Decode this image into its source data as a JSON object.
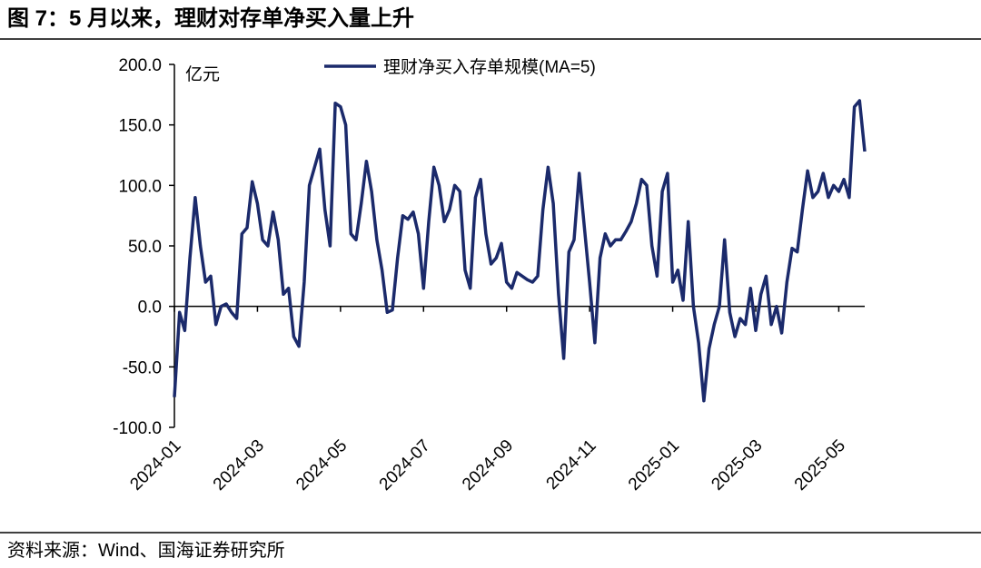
{
  "title": "图 7：5 月以来，理财对存单净买入量上升",
  "source": "资料来源：Wind、国海证券研究所",
  "chart_data": {
    "type": "line",
    "y_unit": "亿元",
    "categories": [
      "2024-01",
      null,
      null,
      null,
      null,
      null,
      null,
      null,
      null,
      null,
      null,
      null,
      null,
      null,
      null,
      null,
      "2024-03",
      null,
      null,
      null,
      null,
      null,
      null,
      null,
      null,
      null,
      null,
      null,
      null,
      null,
      null,
      null,
      "2024-05",
      null,
      null,
      null,
      null,
      null,
      null,
      null,
      null,
      null,
      null,
      null,
      null,
      null,
      null,
      null,
      "2024-07",
      null,
      null,
      null,
      null,
      null,
      null,
      null,
      null,
      null,
      null,
      null,
      null,
      null,
      null,
      null,
      "2024-09",
      null,
      null,
      null,
      null,
      null,
      null,
      null,
      null,
      null,
      null,
      null,
      null,
      null,
      null,
      null,
      "2024-11",
      null,
      null,
      null,
      null,
      null,
      null,
      null,
      null,
      null,
      null,
      null,
      null,
      null,
      null,
      null,
      "2025-01",
      null,
      null,
      null,
      null,
      null,
      null,
      null,
      null,
      null,
      null,
      null,
      null,
      null,
      null,
      null,
      "2025-03",
      null,
      null,
      null,
      null,
      null,
      null,
      null,
      null,
      null,
      null,
      null,
      null,
      null,
      null,
      null,
      "2025-05",
      null,
      null,
      null,
      null,
      null
    ],
    "series": [
      {
        "name": "理财净买入存单规模(MA=5)",
        "color": "#1b2a6b",
        "values": [
          -75,
          -5,
          -20,
          40,
          90,
          50,
          20,
          25,
          -15,
          0,
          2,
          -5,
          -10,
          60,
          65,
          103,
          85,
          55,
          50,
          78,
          55,
          10,
          15,
          -25,
          -33,
          20,
          100,
          115,
          130,
          80,
          50,
          168,
          165,
          150,
          60,
          55,
          85,
          120,
          95,
          55,
          30,
          -5,
          -3,
          40,
          75,
          72,
          78,
          60,
          15,
          70,
          115,
          100,
          70,
          80,
          100,
          95,
          30,
          15,
          90,
          105,
          60,
          35,
          40,
          52,
          20,
          15,
          28,
          25,
          22,
          20,
          25,
          80,
          115,
          85,
          10,
          -43,
          45,
          55,
          110,
          65,
          20,
          -30,
          40,
          60,
          50,
          55,
          55,
          62,
          70,
          85,
          105,
          100,
          50,
          25,
          95,
          110,
          20,
          30,
          5,
          70,
          0,
          -30,
          -78,
          -35,
          -15,
          0,
          55,
          -5,
          -25,
          -10,
          -15,
          15,
          -20,
          10,
          25,
          -15,
          0,
          -22,
          20,
          48,
          45,
          80,
          112,
          90,
          95,
          110,
          90,
          100,
          95,
          105,
          90,
          165,
          170,
          128
        ]
      }
    ],
    "ylim": [
      -100,
      200
    ],
    "yticks": [
      {
        "value": -100,
        "label": "-100.0"
      },
      {
        "value": -50,
        "label": "-50.0"
      },
      {
        "value": 0,
        "label": "0.0"
      },
      {
        "value": 50,
        "label": "50.0"
      },
      {
        "value": 100,
        "label": "100.0"
      },
      {
        "value": 150,
        "label": "150.0"
      },
      {
        "value": 200,
        "label": "200.0"
      }
    ],
    "legend": "top"
  }
}
